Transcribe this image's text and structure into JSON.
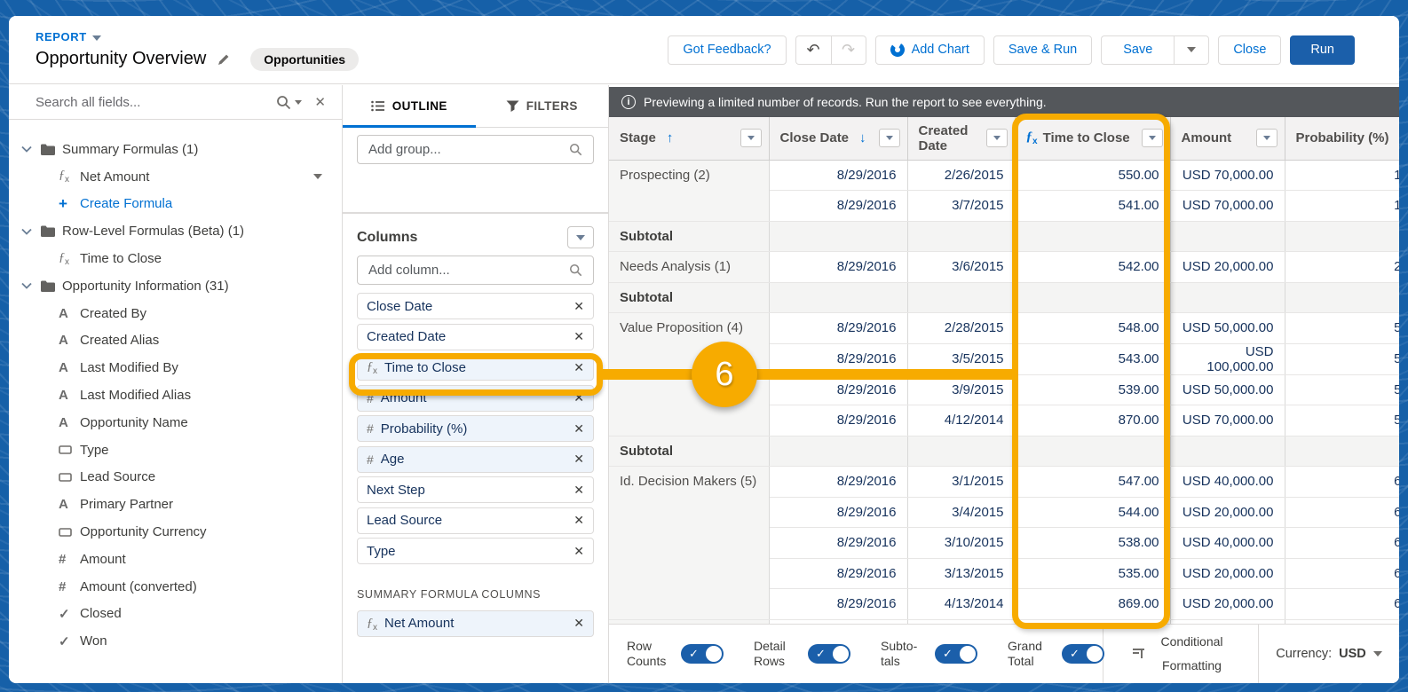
{
  "header": {
    "report_label": "REPORT",
    "title": "Opportunity Overview",
    "object_badge": "Opportunities",
    "buttons": {
      "got_feedback": "Got Feedback?",
      "add_chart": "Add Chart",
      "save_run": "Save & Run",
      "save": "Save",
      "close": "Close",
      "run": "Run"
    }
  },
  "sidebar": {
    "search_placeholder": "Search all fields...",
    "items": [
      {
        "icon": "folder",
        "label": "Summary Formulas (1)",
        "kind": "folder"
      },
      {
        "icon": "fx",
        "label": "Net Amount",
        "kind": "field",
        "menu": true
      },
      {
        "icon": "plus",
        "label": "Create Formula",
        "kind": "link"
      },
      {
        "icon": "folder",
        "label": "Row-Level Formulas (Beta) (1)",
        "kind": "folder"
      },
      {
        "icon": "fx",
        "label": "Time to Close",
        "kind": "field"
      },
      {
        "icon": "folder",
        "label": "Opportunity Information (31)",
        "kind": "folder"
      },
      {
        "icon": "letter",
        "label": "Created By",
        "kind": "field"
      },
      {
        "icon": "letter",
        "label": "Created Alias",
        "kind": "field"
      },
      {
        "icon": "letter",
        "label": "Last Modified By",
        "kind": "field"
      },
      {
        "icon": "letter",
        "label": "Last Modified Alias",
        "kind": "field"
      },
      {
        "icon": "letter",
        "label": "Opportunity Name",
        "kind": "field"
      },
      {
        "icon": "picklist",
        "label": "Type",
        "kind": "field"
      },
      {
        "icon": "picklist",
        "label": "Lead Source",
        "kind": "field"
      },
      {
        "icon": "letter",
        "label": "Primary Partner",
        "kind": "field"
      },
      {
        "icon": "picklist",
        "label": "Opportunity Currency",
        "kind": "field"
      },
      {
        "icon": "number",
        "label": "Amount",
        "kind": "field"
      },
      {
        "icon": "number",
        "label": "Amount (converted)",
        "kind": "field"
      },
      {
        "icon": "check",
        "label": "Closed",
        "kind": "field"
      },
      {
        "icon": "check",
        "label": "Won",
        "kind": "field"
      }
    ]
  },
  "outline_panel": {
    "tabs": {
      "outline": "OUTLINE",
      "filters": "FILTERS"
    },
    "add_group_placeholder": "Add group...",
    "columns_title": "Columns",
    "add_column_placeholder": "Add column...",
    "columns": [
      {
        "icon": null,
        "label": "Close Date",
        "tinted": false
      },
      {
        "icon": null,
        "label": "Created Date",
        "tinted": false
      },
      {
        "icon": "fx",
        "label": "Time to Close",
        "tinted": true,
        "highlighted": true
      },
      {
        "icon": "number",
        "label": "Amount",
        "tinted": true
      },
      {
        "icon": "number",
        "label": "Probability (%)",
        "tinted": true
      },
      {
        "icon": "number",
        "label": "Age",
        "tinted": true
      },
      {
        "icon": null,
        "label": "Next Step",
        "tinted": false
      },
      {
        "icon": null,
        "label": "Lead Source",
        "tinted": false
      },
      {
        "icon": null,
        "label": "Type",
        "tinted": false
      }
    ],
    "summary_section_label": "SUMMARY FORMULA COLUMNS",
    "summary_columns": [
      {
        "icon": "fx",
        "label": "Net Amount",
        "tinted": true
      }
    ]
  },
  "preview": {
    "info_text": "Previewing a limited number of records. Run the report to see everything.",
    "table": {
      "headers": [
        {
          "label": "Stage",
          "sort": "up",
          "menu": true
        },
        {
          "label": "Close Date",
          "sort": "down",
          "menu": true
        },
        {
          "label": "Created Date",
          "menu": true
        },
        {
          "label": "Time to Close",
          "fx": true,
          "menu": true
        },
        {
          "label": "Amount",
          "menu": true
        },
        {
          "label": "Probability (%)"
        }
      ],
      "rows": [
        {
          "type": "detail",
          "group": "Prospecting (2)",
          "span": 2,
          "close_date": "8/29/2016",
          "created_date": "2/26/2015",
          "time_to_close": "550.00",
          "amount": "USD 70,000.00",
          "probability": "1"
        },
        {
          "type": "detail",
          "close_date": "8/29/2016",
          "created_date": "3/7/2015",
          "time_to_close": "541.00",
          "amount": "USD 70,000.00",
          "probability": "1"
        },
        {
          "type": "subtotal",
          "label": "Subtotal"
        },
        {
          "type": "detail",
          "group": "Needs Analysis (1)",
          "span": 1,
          "close_date": "8/29/2016",
          "created_date": "3/6/2015",
          "time_to_close": "542.00",
          "amount": "USD 20,000.00",
          "probability": "2"
        },
        {
          "type": "subtotal",
          "label": "Subtotal"
        },
        {
          "type": "detail",
          "group": "Value Proposition (4)",
          "span": 4,
          "close_date": "8/29/2016",
          "created_date": "2/28/2015",
          "time_to_close": "548.00",
          "amount": "USD 50,000.00",
          "probability": "5"
        },
        {
          "type": "detail",
          "close_date": "8/29/2016",
          "created_date": "3/5/2015",
          "time_to_close": "543.00",
          "amount": "USD 100,000.00",
          "probability": "5"
        },
        {
          "type": "detail",
          "close_date": "8/29/2016",
          "created_date": "3/9/2015",
          "time_to_close": "539.00",
          "amount": "USD 50,000.00",
          "probability": "5"
        },
        {
          "type": "detail",
          "close_date": "8/29/2016",
          "created_date": "4/12/2014",
          "time_to_close": "870.00",
          "amount": "USD 70,000.00",
          "probability": "5"
        },
        {
          "type": "subtotal",
          "label": "Subtotal"
        },
        {
          "type": "detail",
          "group": "Id. Decision Makers (5)",
          "span": 5,
          "close_date": "8/29/2016",
          "created_date": "3/1/2015",
          "time_to_close": "547.00",
          "amount": "USD 40,000.00",
          "probability": "6"
        },
        {
          "type": "detail",
          "close_date": "8/29/2016",
          "created_date": "3/4/2015",
          "time_to_close": "544.00",
          "amount": "USD 20,000.00",
          "probability": "6"
        },
        {
          "type": "detail",
          "close_date": "8/29/2016",
          "created_date": "3/10/2015",
          "time_to_close": "538.00",
          "amount": "USD 40,000.00",
          "probability": "6"
        },
        {
          "type": "detail",
          "close_date": "8/29/2016",
          "created_date": "3/13/2015",
          "time_to_close": "535.00",
          "amount": "USD 20,000.00",
          "probability": "6"
        },
        {
          "type": "detail",
          "close_date": "8/29/2016",
          "created_date": "4/13/2014",
          "time_to_close": "869.00",
          "amount": "USD 20,000.00",
          "probability": "6"
        }
      ]
    },
    "footer": {
      "toggles": [
        {
          "label": "Row Counts",
          "on": true
        },
        {
          "label": "Detail Rows",
          "on": true
        },
        {
          "label": "Subto-tals",
          "on": true
        },
        {
          "label": "Grand Total",
          "on": true
        }
      ],
      "conditional_formatting": "Conditional Formatting",
      "currency_label": "Currency:",
      "currency_value": "USD"
    }
  },
  "callout": {
    "number": "6"
  },
  "colors": {
    "accent_blue": "#0070d2",
    "run_button_blue": "#1b5faa",
    "highlight_gold": "#f7ab00",
    "data_navy": "#16325c",
    "info_bar_gray": "#54575b",
    "frame_blue": "#1660a8"
  }
}
